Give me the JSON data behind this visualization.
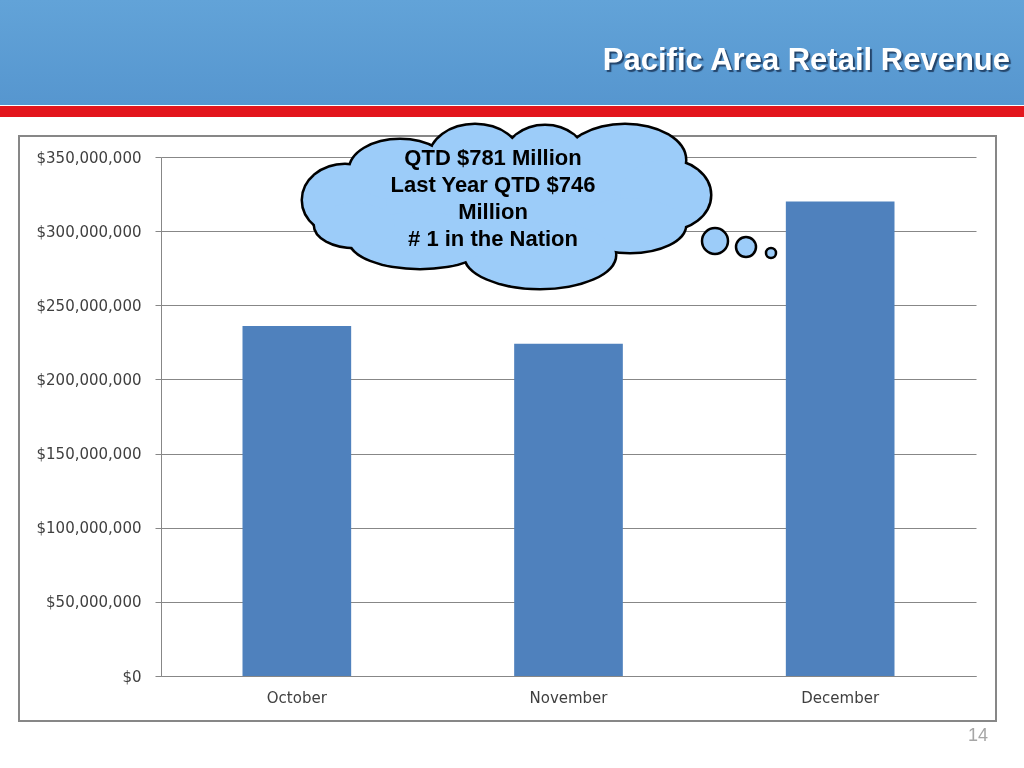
{
  "chart_data": {
    "type": "bar",
    "title": "Pacific Area Retail Revenue",
    "categories": [
      "October",
      "November",
      "December"
    ],
    "values": [
      236000000,
      224000000,
      320000000
    ],
    "color": "#4f81bd",
    "ylim": [
      0,
      350000000
    ],
    "yticks": [
      {
        "value": 0,
        "label": "$0"
      },
      {
        "value": 50000000,
        "label": "$50,000,000"
      },
      {
        "value": 100000000,
        "label": "$100,000,000"
      },
      {
        "value": 150000000,
        "label": "$150,000,000"
      },
      {
        "value": 200000000,
        "label": "$200,000,000"
      },
      {
        "value": 250000000,
        "label": "$250,000,000"
      },
      {
        "value": 300000000,
        "label": "$300,000,000"
      },
      {
        "value": 350000000,
        "label": "$350,000,000"
      }
    ],
    "grid": "y",
    "annotations": [
      "QTD $781 Million\nLast Year QTD $746 Million\n# 1 in the Nation",
      "14"
    ]
  }
}
